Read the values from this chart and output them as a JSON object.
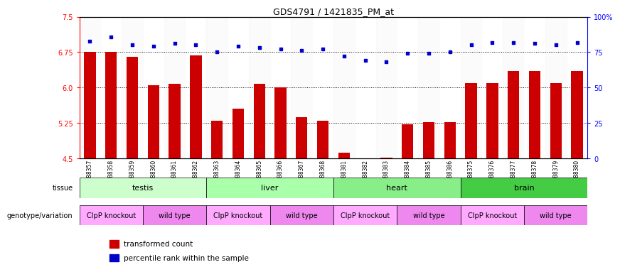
{
  "title": "GDS4791 / 1421835_PM_at",
  "samples": [
    "GSM988357",
    "GSM988358",
    "GSM988359",
    "GSM988360",
    "GSM988361",
    "GSM988362",
    "GSM988363",
    "GSM988364",
    "GSM988365",
    "GSM988366",
    "GSM988367",
    "GSM988368",
    "GSM988381",
    "GSM988382",
    "GSM988383",
    "GSM988384",
    "GSM988385",
    "GSM988386",
    "GSM988375",
    "GSM988376",
    "GSM988377",
    "GSM988378",
    "GSM988379",
    "GSM988380"
  ],
  "bar_values": [
    6.75,
    6.75,
    6.65,
    6.05,
    6.08,
    6.68,
    5.3,
    5.55,
    6.08,
    6.0,
    5.37,
    5.3,
    4.62,
    4.5,
    4.52,
    5.22,
    5.27,
    5.27,
    6.1,
    6.1,
    6.35,
    6.35,
    6.1,
    6.35
  ],
  "blue_values": [
    83,
    86,
    80,
    79,
    81,
    80,
    75,
    79,
    78,
    77,
    76,
    77,
    72,
    69,
    68,
    74,
    74,
    75,
    80,
    82,
    82,
    81,
    80,
    82
  ],
  "ylim_left": [
    4.5,
    7.5
  ],
  "ylim_right": [
    0,
    100
  ],
  "yticks_left": [
    4.5,
    5.25,
    6.0,
    6.75,
    7.5
  ],
  "yticks_right": [
    0,
    25,
    50,
    75,
    100
  ],
  "ytick_labels_right": [
    "0",
    "25",
    "50",
    "75",
    "100%"
  ],
  "tissue_groups": [
    {
      "label": "testis",
      "start": 0,
      "end": 6,
      "color": "#ccffcc"
    },
    {
      "label": "liver",
      "start": 6,
      "end": 12,
      "color": "#aaffaa"
    },
    {
      "label": "heart",
      "start": 12,
      "end": 18,
      "color": "#88ee88"
    },
    {
      "label": "brain",
      "start": 18,
      "end": 24,
      "color": "#44cc44"
    }
  ],
  "genotype_groups": [
    {
      "label": "ClpP knockout",
      "start": 0,
      "end": 3,
      "color": "#ffaaff"
    },
    {
      "label": "wild type",
      "start": 3,
      "end": 6,
      "color": "#ee88ee"
    },
    {
      "label": "ClpP knockout",
      "start": 6,
      "end": 9,
      "color": "#ffaaff"
    },
    {
      "label": "wild type",
      "start": 9,
      "end": 12,
      "color": "#ee88ee"
    },
    {
      "label": "ClpP knockout",
      "start": 12,
      "end": 15,
      "color": "#ffaaff"
    },
    {
      "label": "wild type",
      "start": 15,
      "end": 18,
      "color": "#ee88ee"
    },
    {
      "label": "ClpP knockout",
      "start": 18,
      "end": 21,
      "color": "#ffaaff"
    },
    {
      "label": "wild type",
      "start": 21,
      "end": 24,
      "color": "#ee88ee"
    }
  ],
  "bar_color": "#cc0000",
  "dot_color": "#0000cc",
  "bar_width": 0.55,
  "bg_color": "#ffffff"
}
